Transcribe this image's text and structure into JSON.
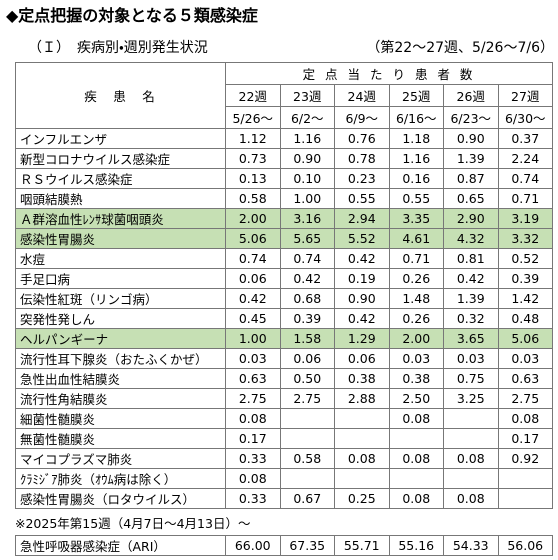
{
  "header": {
    "title": "◆定点把握の対象となる５類感染症",
    "subtitle": "（Ｉ）　疾病別・週別発生状況",
    "period": "（第22～27週、5/26～7/6）"
  },
  "table": {
    "name_header": "疾　患　名",
    "group_header": "定 点 当 た り 患 者 数",
    "weeks": [
      "22週",
      "23週",
      "24週",
      "25週",
      "26週",
      "27週"
    ],
    "dates": [
      "5/26～",
      "6/2～",
      "6/9～",
      "6/16～",
      "6/23～",
      "6/30～"
    ],
    "rows": [
      {
        "name": "インフルエンザ",
        "values": [
          "1.12",
          "1.16",
          "0.76",
          "1.18",
          "0.90",
          "0.37"
        ]
      },
      {
        "name": "新型コロナウイルス感染症",
        "values": [
          "0.73",
          "0.90",
          "0.78",
          "1.16",
          "1.39",
          "2.24"
        ]
      },
      {
        "name": "ＲＳウイルス感染症",
        "values": [
          "0.13",
          "0.10",
          "0.23",
          "0.16",
          "0.87",
          "0.74"
        ]
      },
      {
        "name": "咽頭結膜熱",
        "values": [
          "0.58",
          "1.00",
          "0.55",
          "0.55",
          "0.65",
          "0.71"
        ]
      },
      {
        "name": "Ａ群溶血性ﾚﾝｻ球菌咽頭炎",
        "values": [
          "2.00",
          "3.16",
          "2.94",
          "3.35",
          "2.90",
          "3.19"
        ],
        "fill": "#c6e0b4"
      },
      {
        "name": "感染性胃腸炎",
        "values": [
          "5.06",
          "5.65",
          "5.52",
          "4.61",
          "4.32",
          "3.32"
        ],
        "fill": "#c6e0b4"
      },
      {
        "name": "水痘",
        "values": [
          "0.74",
          "0.74",
          "0.42",
          "0.71",
          "0.81",
          "0.52"
        ]
      },
      {
        "name": "手足口病",
        "values": [
          "0.06",
          "0.42",
          "0.19",
          "0.26",
          "0.42",
          "0.39"
        ]
      },
      {
        "name": "伝染性紅斑（リンゴ病）",
        "values": [
          "0.42",
          "0.68",
          "0.90",
          "1.48",
          "1.39",
          "1.42"
        ]
      },
      {
        "name": "突発性発しん",
        "values": [
          "0.45",
          "0.39",
          "0.42",
          "0.26",
          "0.32",
          "0.48"
        ]
      },
      {
        "name": "ヘルパンギーナ",
        "values": [
          "1.00",
          "1.58",
          "1.29",
          "2.00",
          "3.65",
          "5.06"
        ],
        "fill": "#c6e0b4"
      },
      {
        "name": "流行性耳下腺炎（おたふくかぜ）",
        "values": [
          "0.03",
          "0.06",
          "0.06",
          "0.03",
          "0.03",
          "0.03"
        ]
      },
      {
        "name": "急性出血性結膜炎",
        "values": [
          "0.63",
          "0.50",
          "0.38",
          "0.38",
          "0.75",
          "0.63"
        ]
      },
      {
        "name": "流行性角結膜炎",
        "values": [
          "2.75",
          "2.75",
          "2.88",
          "2.50",
          "3.25",
          "2.75"
        ]
      },
      {
        "name": "細菌性髄膜炎",
        "values": [
          "0.08",
          null,
          null,
          "0.08",
          null,
          "0.08"
        ]
      },
      {
        "name": "無菌性髄膜炎",
        "values": [
          "0.17",
          null,
          null,
          null,
          null,
          "0.17"
        ]
      },
      {
        "name": "マイコプラズマ肺炎",
        "values": [
          "0.33",
          "0.58",
          "0.08",
          "0.08",
          "0.08",
          "0.92"
        ]
      },
      {
        "name": "ｸﾗﾐｼﾞｱ肺炎（ｵｳﾑ病は除く）",
        "values": [
          "0.08",
          null,
          null,
          null,
          null,
          null
        ]
      },
      {
        "name": "感染性胃腸炎（ロタウイルス）",
        "values": [
          "0.33",
          "0.67",
          "0.25",
          "0.08",
          "0.08",
          null
        ]
      }
    ]
  },
  "note": "※2025年第15週（4月7日～4月13日）～",
  "ari": {
    "name": "急性呼吸器感染症（ARI）",
    "values": [
      "66.00",
      "67.35",
      "55.71",
      "55.16",
      "54.33",
      "56.06"
    ]
  }
}
